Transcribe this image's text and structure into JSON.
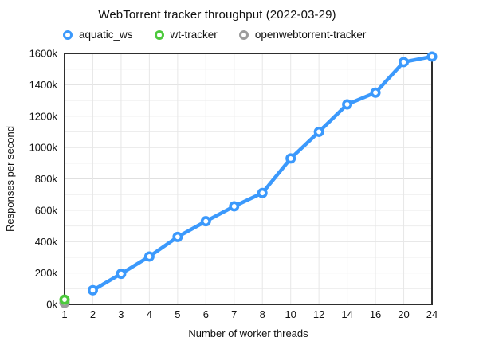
{
  "page": {
    "title": "WebTorrent tracker throughput (2022-03-29)"
  },
  "legend": {
    "items": [
      {
        "label": "aquatic_ws",
        "color": "#3B99FC"
      },
      {
        "label": "wt-tracker",
        "color": "#4CC93C"
      },
      {
        "label": "openwebtorrent-tracker",
        "color": "#9C9C9C"
      }
    ]
  },
  "chart_data": {
    "type": "line",
    "title": "WebTorrent tracker throughput (2022-03-29)",
    "xlabel": "Number of worker threads",
    "ylabel": "Responses per second",
    "grid": true,
    "legend_position": "top",
    "x_axis": {
      "type": "categorical",
      "categories": [
        1,
        2,
        3,
        4,
        5,
        6,
        7,
        8,
        10,
        12,
        14,
        16,
        20,
        24
      ]
    },
    "y_axis": {
      "min": 0,
      "max": 1600000,
      "major_tick_step": 200000,
      "minor_grid_step": 100000,
      "tick_labels": [
        "0k",
        "200k",
        "400k",
        "600k",
        "800k",
        "1000k",
        "1200k",
        "1400k",
        "1600k"
      ]
    },
    "series": [
      {
        "name": "aquatic_ws",
        "color": "#3B99FC",
        "points": [
          {
            "threads": 2,
            "responses_per_second": 90000
          },
          {
            "threads": 3,
            "responses_per_second": 195000
          },
          {
            "threads": 4,
            "responses_per_second": 305000
          },
          {
            "threads": 5,
            "responses_per_second": 430000
          },
          {
            "threads": 6,
            "responses_per_second": 530000
          },
          {
            "threads": 7,
            "responses_per_second": 625000
          },
          {
            "threads": 8,
            "responses_per_second": 710000
          },
          {
            "threads": 10,
            "responses_per_second": 930000
          },
          {
            "threads": 12,
            "responses_per_second": 1100000
          },
          {
            "threads": 14,
            "responses_per_second": 1275000
          },
          {
            "threads": 16,
            "responses_per_second": 1350000
          },
          {
            "threads": 20,
            "responses_per_second": 1545000
          },
          {
            "threads": 24,
            "responses_per_second": 1580000
          }
        ]
      },
      {
        "name": "wt-tracker",
        "color": "#4CC93C",
        "points": [
          {
            "threads": 1,
            "responses_per_second": 30000
          }
        ]
      },
      {
        "name": "openwebtorrent-tracker",
        "color": "#9C9C9C",
        "points": [
          {
            "threads": 1,
            "responses_per_second": 10000
          }
        ]
      }
    ]
  }
}
